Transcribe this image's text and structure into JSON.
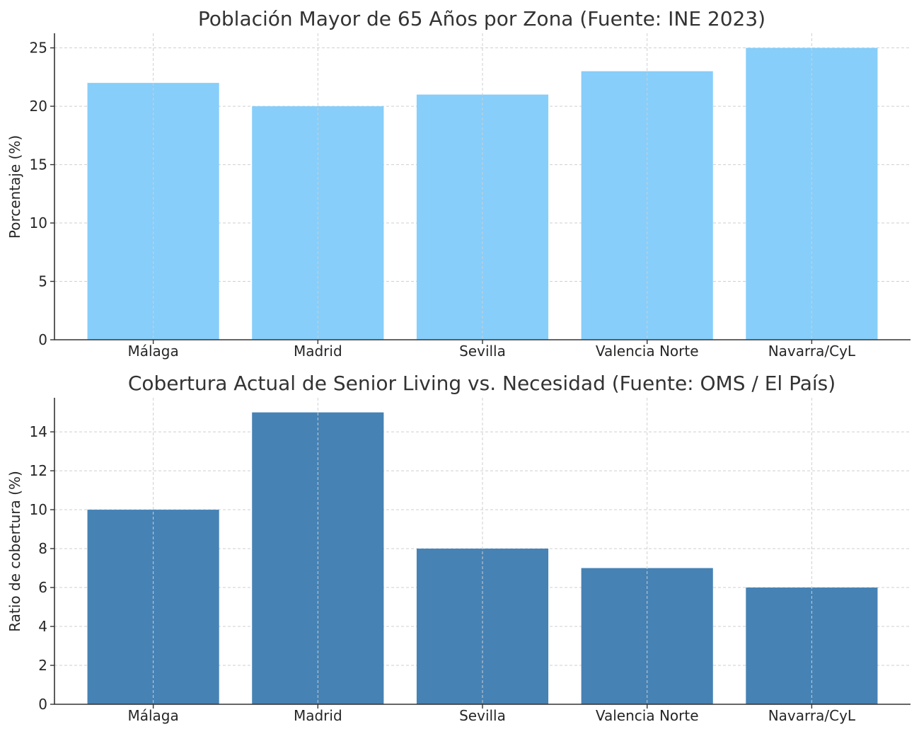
{
  "chart_data": [
    {
      "type": "bar",
      "title": "Población Mayor de 65 Años por Zona (Fuente: INE 2023)",
      "xlabel": "",
      "ylabel": "Porcentaje (%)",
      "categories": [
        "Málaga",
        "Madrid",
        "Sevilla",
        "Valencia Norte",
        "Navarra/CyL"
      ],
      "values": [
        22,
        20,
        21,
        23,
        25
      ],
      "ylim": [
        0,
        26.25
      ],
      "yticks": [
        0,
        5,
        10,
        15,
        20,
        25
      ],
      "bar_color": "#87CEFA",
      "grid": true
    },
    {
      "type": "bar",
      "title": "Cobertura Actual de Senior Living vs. Necesidad (Fuente: OMS / El País)",
      "xlabel": "",
      "ylabel": "Ratio de cobertura (%)",
      "categories": [
        "Málaga",
        "Madrid",
        "Sevilla",
        "Valencia Norte",
        "Navarra/CyL"
      ],
      "values": [
        10,
        15,
        8,
        7,
        6
      ],
      "ylim": [
        0,
        15.75
      ],
      "yticks": [
        0,
        2,
        4,
        6,
        8,
        10,
        12,
        14
      ],
      "bar_color": "#4682B4",
      "grid": true
    }
  ]
}
